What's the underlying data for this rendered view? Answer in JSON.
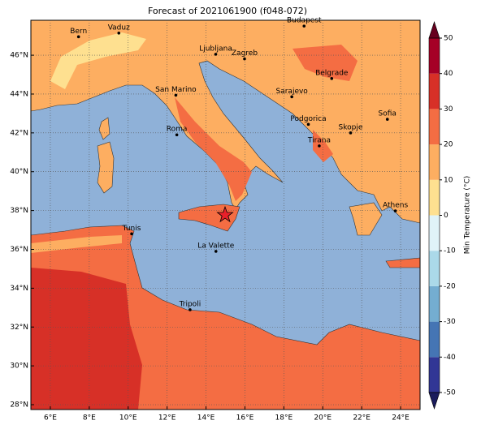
{
  "map": {
    "type": "map",
    "title": "Forecast of 2021061900 (f048-072)",
    "lonlim": [
      5,
      25
    ],
    "latlim": [
      27.75,
      47.8
    ],
    "xticks": [
      {
        "value": 6,
        "label": "6°E"
      },
      {
        "value": 8,
        "label": "8°E"
      },
      {
        "value": 10,
        "label": "10°E"
      },
      {
        "value": 12,
        "label": "12°E"
      },
      {
        "value": 14,
        "label": "14°E"
      },
      {
        "value": 16,
        "label": "16°E"
      },
      {
        "value": 18,
        "label": "18°E"
      },
      {
        "value": 20,
        "label": "20°E"
      },
      {
        "value": 22,
        "label": "22°E"
      },
      {
        "value": 24,
        "label": "24°E"
      }
    ],
    "yticks": [
      {
        "value": 28,
        "label": "28°N"
      },
      {
        "value": 30,
        "label": "30°N"
      },
      {
        "value": 32,
        "label": "32°N"
      },
      {
        "value": 34,
        "label": "34°N"
      },
      {
        "value": 36,
        "label": "36°N"
      },
      {
        "value": 38,
        "label": "38°N"
      },
      {
        "value": 40,
        "label": "40°N"
      },
      {
        "value": 42,
        "label": "42°N"
      },
      {
        "value": 44,
        "label": "44°N"
      },
      {
        "value": 46,
        "label": "46°N"
      }
    ],
    "grid": true,
    "cities": [
      {
        "name": "Bern",
        "lon": 7.45,
        "lat": 46.95
      },
      {
        "name": "Vaduz",
        "lon": 9.52,
        "lat": 47.14
      },
      {
        "name": "Budapest",
        "lon": 19.04,
        "lat": 47.5
      },
      {
        "name": "Ljubljana",
        "lon": 14.5,
        "lat": 46.05
      },
      {
        "name": "Zagreb",
        "lon": 15.98,
        "lat": 45.81
      },
      {
        "name": "Belgrade",
        "lon": 20.46,
        "lat": 44.8
      },
      {
        "name": "San Marino",
        "lon": 12.45,
        "lat": 43.94
      },
      {
        "name": "Sarajevo",
        "lon": 18.41,
        "lat": 43.86
      },
      {
        "name": "Sofia",
        "lon": 23.32,
        "lat": 42.7
      },
      {
        "name": "Podgorica",
        "lon": 19.26,
        "lat": 42.44
      },
      {
        "name": "Skopje",
        "lon": 21.43,
        "lat": 42.0
      },
      {
        "name": "Roma",
        "lon": 12.5,
        "lat": 41.9
      },
      {
        "name": "Tirana",
        "lon": 19.82,
        "lat": 41.33
      },
      {
        "name": "Athens",
        "lon": 23.73,
        "lat": 37.98
      },
      {
        "name": "Tunis",
        "lon": 10.18,
        "lat": 36.8
      },
      {
        "name": "La Valette",
        "lon": 14.51,
        "lat": 35.9
      },
      {
        "name": "Tripoli",
        "lon": 13.18,
        "lat": 32.89
      }
    ],
    "marker": {
      "lon": 14.98,
      "lat": 37.77,
      "color": "#e8202a"
    },
    "cbar": {
      "label": "Min Temperature (°C)",
      "ticks": [
        -50,
        -40,
        -30,
        -20,
        -10,
        0,
        10,
        20,
        30,
        40,
        50
      ],
      "colors": [
        "#313695",
        "#4575b4",
        "#74add1",
        "#abd9e9",
        "#e0f3f8",
        "#fee090",
        "#fdae61",
        "#f46d43",
        "#d73027",
        "#a50026"
      ],
      "extend_colors": [
        "#1a1c5c",
        "#67001f"
      ]
    }
  }
}
